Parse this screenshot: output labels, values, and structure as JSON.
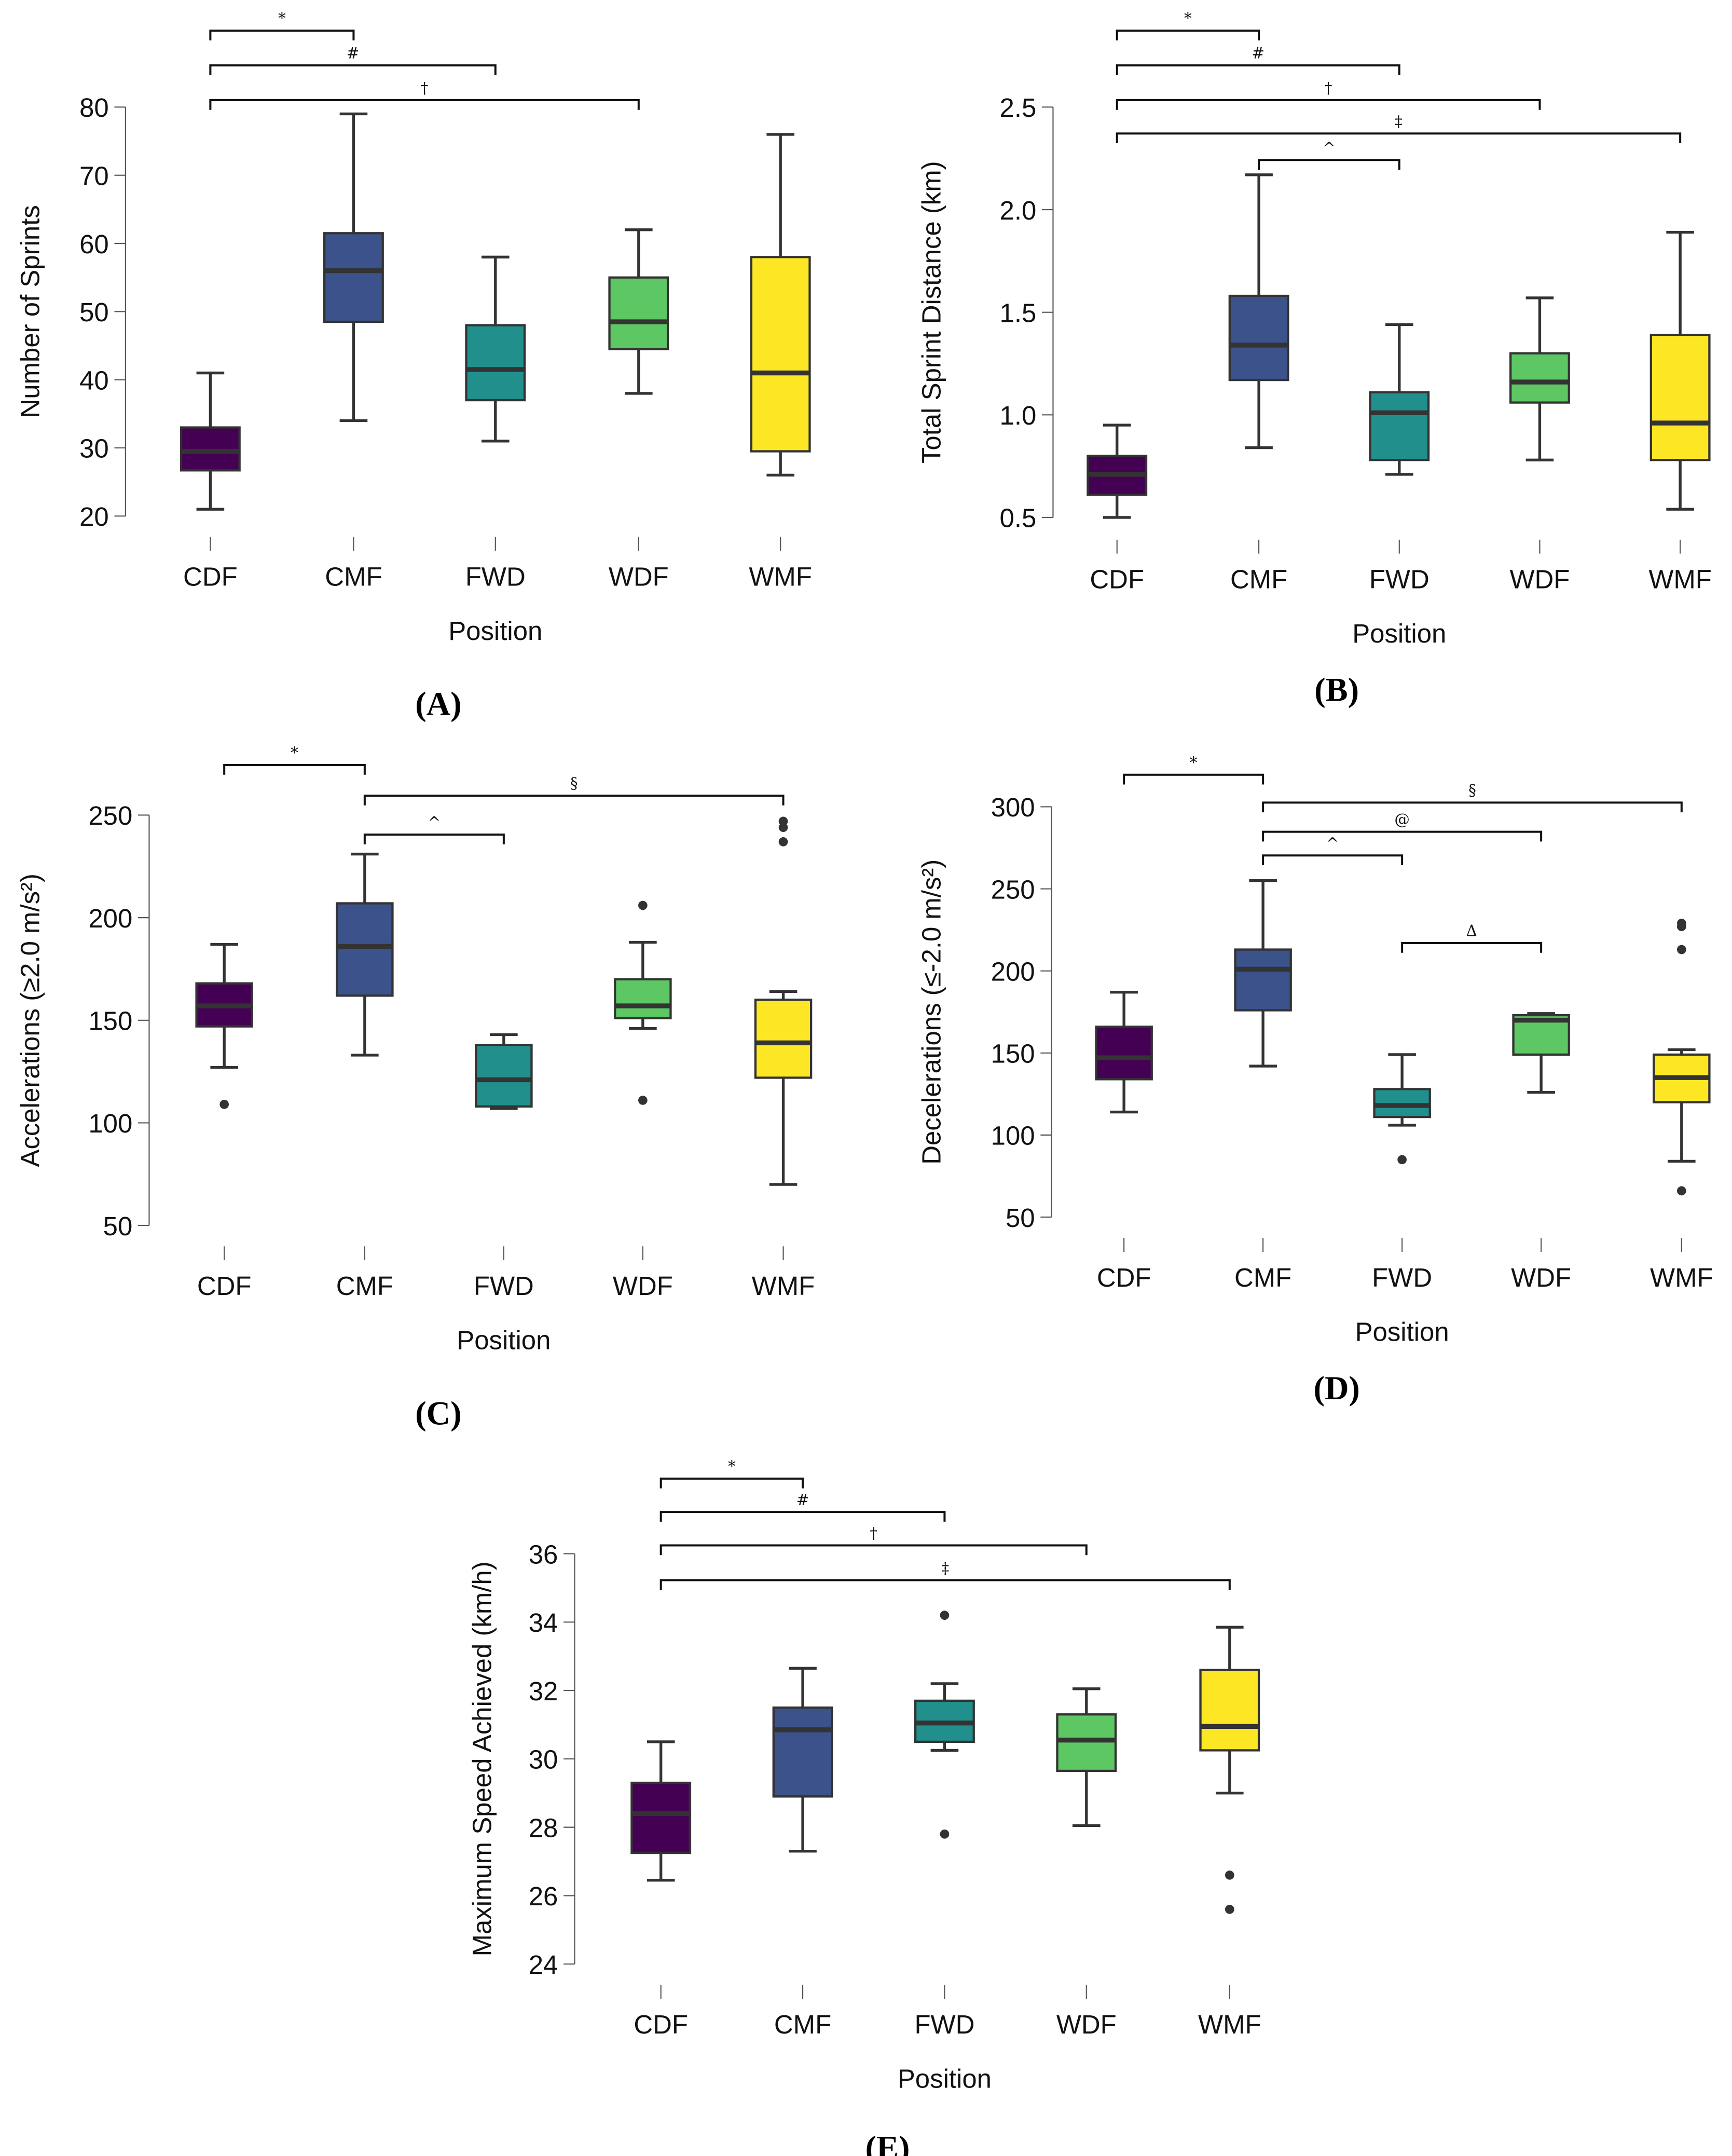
{
  "colors": {
    "CDF": "#440154",
    "CMF": "#3B528B",
    "FWD": "#21908C",
    "WDF": "#5DC863",
    "WMF": "#FDE725"
  },
  "chart_data": [
    {
      "type": "box",
      "panel": "(A)",
      "xlabel": "Position",
      "ylabel": "Number of Sprints",
      "categories": [
        "CDF",
        "CMF",
        "FWD",
        "WDF",
        "WMF"
      ],
      "ylim": [
        20,
        80
      ],
      "yticks": [
        20,
        30,
        40,
        50,
        60,
        70,
        80
      ],
      "ytick_labels": [
        "20",
        "30",
        "40",
        "50",
        "60",
        "70",
        "80"
      ],
      "boxes": [
        {
          "min": 21,
          "q1": 26.7,
          "median": 29.5,
          "q3": 33,
          "max": 41,
          "outliers": []
        },
        {
          "min": 34,
          "q1": 48.5,
          "median": 56,
          "q3": 61.5,
          "max": 79,
          "outliers": []
        },
        {
          "min": 31,
          "q1": 37,
          "median": 41.5,
          "q3": 48,
          "max": 58,
          "outliers": []
        },
        {
          "min": 38,
          "q1": 44.5,
          "median": 48.5,
          "q3": 55,
          "max": 62,
          "outliers": []
        },
        {
          "min": 26,
          "q1": 29.5,
          "median": 41,
          "q3": 58,
          "max": 76,
          "outliers": []
        }
      ],
      "significance": [
        {
          "symbol": "*",
          "from": "CDF",
          "to": "CMF"
        },
        {
          "symbol": "#",
          "from": "CDF",
          "to": "FWD"
        },
        {
          "symbol": "†",
          "from": "CDF",
          "to": "WDF"
        }
      ]
    },
    {
      "type": "box",
      "panel": "(B)",
      "xlabel": "Position",
      "ylabel": "Total Sprint Distance (km)",
      "categories": [
        "CDF",
        "CMF",
        "FWD",
        "WDF",
        "WMF"
      ],
      "ylim": [
        0.5,
        2.5
      ],
      "yticks": [
        0.5,
        1.0,
        1.5,
        2.0,
        2.5
      ],
      "ytick_labels": [
        "0.5",
        "1.0",
        "1.5",
        "2.0",
        "2.5"
      ],
      "boxes": [
        {
          "min": 0.5,
          "q1": 0.61,
          "median": 0.71,
          "q3": 0.8,
          "max": 0.95,
          "outliers": []
        },
        {
          "min": 0.84,
          "q1": 1.17,
          "median": 1.34,
          "q3": 1.58,
          "max": 2.17,
          "outliers": []
        },
        {
          "min": 0.71,
          "q1": 0.78,
          "median": 1.01,
          "q3": 1.11,
          "max": 1.44,
          "outliers": []
        },
        {
          "min": 0.78,
          "q1": 1.06,
          "median": 1.16,
          "q3": 1.3,
          "max": 1.57,
          "outliers": []
        },
        {
          "min": 0.54,
          "q1": 0.78,
          "median": 0.96,
          "q3": 1.39,
          "max": 1.89,
          "outliers": []
        }
      ],
      "significance": [
        {
          "symbol": "*",
          "from": "CDF",
          "to": "CMF"
        },
        {
          "symbol": "#",
          "from": "CDF",
          "to": "FWD"
        },
        {
          "symbol": "†",
          "from": "CDF",
          "to": "WDF"
        },
        {
          "symbol": "‡",
          "from": "CDF",
          "to": "WMF"
        },
        {
          "symbol": "^",
          "from": "CMF",
          "to": "FWD"
        }
      ]
    },
    {
      "type": "box",
      "panel": "(C)",
      "xlabel": "Position",
      "ylabel": "Accelerations (≥2.0 m/s²)",
      "categories": [
        "CDF",
        "CMF",
        "FWD",
        "WDF",
        "WMF"
      ],
      "ylim": [
        50,
        250
      ],
      "yticks": [
        50,
        100,
        150,
        200,
        250
      ],
      "ytick_labels": [
        "50",
        "100",
        "150",
        "200",
        "250"
      ],
      "boxes": [
        {
          "min": 127,
          "q1": 147,
          "median": 157,
          "q3": 168,
          "max": 187,
          "outliers": [
            109
          ]
        },
        {
          "min": 133,
          "q1": 162,
          "median": 186,
          "q3": 207,
          "max": 231,
          "outliers": []
        },
        {
          "min": 107,
          "q1": 108,
          "median": 121,
          "q3": 138,
          "max": 143,
          "outliers": []
        },
        {
          "min": 146,
          "q1": 151,
          "median": 157,
          "q3": 170,
          "max": 188,
          "outliers": [
            206,
            111
          ]
        },
        {
          "min": 70,
          "q1": 122,
          "median": 139,
          "q3": 160,
          "max": 164,
          "outliers": [
            237,
            244,
            247
          ]
        }
      ],
      "significance": [
        {
          "symbol": "*",
          "from": "CDF",
          "to": "CMF"
        },
        {
          "symbol": "§",
          "from": "CMF",
          "to": "WMF"
        },
        {
          "symbol": "^",
          "from": "CMF",
          "to": "FWD"
        }
      ]
    },
    {
      "type": "box",
      "panel": "(D)",
      "xlabel": "Position",
      "ylabel": "Decelerations (≤-2.0 m/s²)",
      "categories": [
        "CDF",
        "CMF",
        "FWD",
        "WDF",
        "WMF"
      ],
      "ylim": [
        50,
        300
      ],
      "yticks": [
        50,
        100,
        150,
        200,
        250,
        300
      ],
      "ytick_labels": [
        "50",
        "100",
        "150",
        "200",
        "250",
        "300"
      ],
      "boxes": [
        {
          "min": 114,
          "q1": 134,
          "median": 147,
          "q3": 166,
          "max": 187,
          "outliers": []
        },
        {
          "min": 142,
          "q1": 176,
          "median": 201,
          "q3": 213,
          "max": 255,
          "outliers": []
        },
        {
          "min": 106,
          "q1": 111,
          "median": 118,
          "q3": 128,
          "max": 149,
          "outliers": [
            85
          ]
        },
        {
          "min": 126,
          "q1": 149,
          "median": 170,
          "q3": 173,
          "max": 174,
          "outliers": []
        },
        {
          "min": 84,
          "q1": 120,
          "median": 135,
          "q3": 149,
          "max": 152,
          "outliers": [
            66,
            213,
            227,
            229
          ]
        }
      ],
      "significance": [
        {
          "symbol": "*",
          "from": "CDF",
          "to": "CMF"
        },
        {
          "symbol": "§",
          "from": "CMF",
          "to": "WMF"
        },
        {
          "symbol": "@",
          "from": "CMF",
          "to": "WDF"
        },
        {
          "symbol": "^",
          "from": "CMF",
          "to": "FWD"
        },
        {
          "symbol": "Δ",
          "from": "FWD",
          "to": "WDF"
        }
      ]
    },
    {
      "type": "box",
      "panel": "(E)",
      "xlabel": "Position",
      "ylabel": "Maximum Speed Achieved (km/h)",
      "categories": [
        "CDF",
        "CMF",
        "FWD",
        "WDF",
        "WMF"
      ],
      "ylim": [
        24,
        36
      ],
      "yticks": [
        24,
        26,
        28,
        30,
        32,
        34,
        36
      ],
      "ytick_labels": [
        "24",
        "26",
        "28",
        "30",
        "32",
        "34",
        "36"
      ],
      "boxes": [
        {
          "min": 26.45,
          "q1": 27.25,
          "median": 28.4,
          "q3": 29.3,
          "max": 30.5,
          "outliers": []
        },
        {
          "min": 27.3,
          "q1": 28.9,
          "median": 30.85,
          "q3": 31.5,
          "max": 32.65,
          "outliers": []
        },
        {
          "min": 30.25,
          "q1": 30.5,
          "median": 31.05,
          "q3": 31.7,
          "max": 32.2,
          "outliers": [
            34.2,
            27.8
          ]
        },
        {
          "min": 28.05,
          "q1": 29.65,
          "median": 30.55,
          "q3": 31.3,
          "max": 32.05,
          "outliers": []
        },
        {
          "min": 29.0,
          "q1": 30.25,
          "median": 30.95,
          "q3": 32.6,
          "max": 33.85,
          "outliers": [
            26.6,
            25.6
          ]
        }
      ],
      "significance": [
        {
          "symbol": "*",
          "from": "CDF",
          "to": "CMF"
        },
        {
          "symbol": "#",
          "from": "CDF",
          "to": "FWD"
        },
        {
          "symbol": "†",
          "from": "CDF",
          "to": "WDF"
        },
        {
          "symbol": "‡",
          "from": "CDF",
          "to": "WMF"
        }
      ]
    }
  ]
}
